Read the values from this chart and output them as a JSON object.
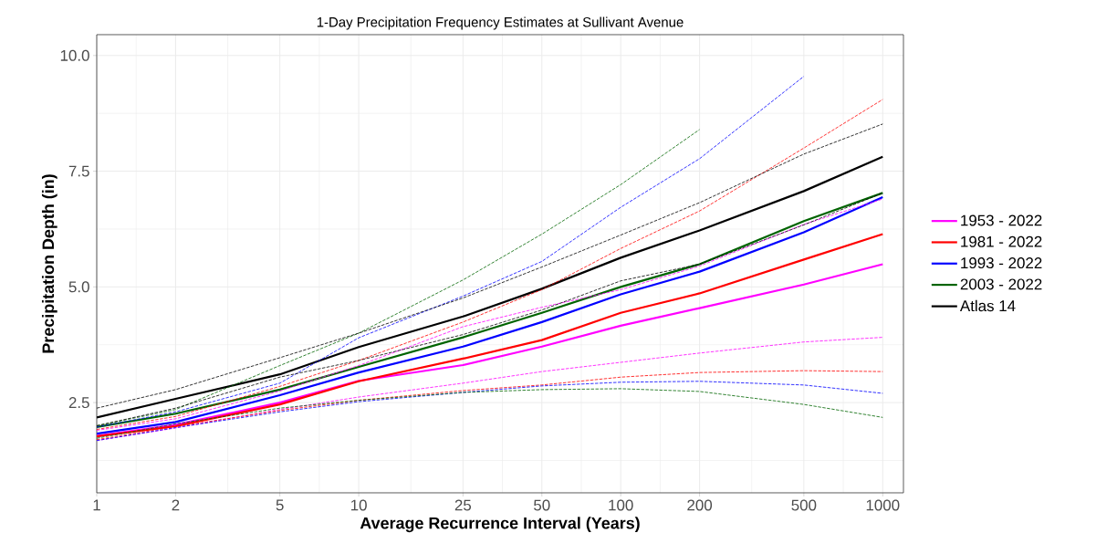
{
  "chart_data": {
    "type": "line",
    "title": "1-Day Precipitation Frequency Estimates at Sullivant Avenue",
    "xlabel": "Average Recurrence Interval (Years)",
    "ylabel": "Precipitation Depth (in)",
    "x": [
      1,
      2,
      5,
      10,
      25,
      50,
      100,
      200,
      500,
      1000
    ],
    "log": "x",
    "xlim": [
      1,
      1200
    ],
    "ylim": [
      0.55,
      10.45
    ],
    "xticks": [
      1,
      2,
      5,
      10,
      25,
      50,
      100,
      200,
      500,
      1000
    ],
    "yticks": [
      2.5,
      {
        "value": 5,
        "label": "5.0"
      },
      7.5,
      {
        "value": 10,
        "label": "10.0"
      }
    ],
    "grid": true,
    "legend": "right",
    "line_style": "solid",
    "series": [
      {
        "color": "#ff00ff",
        "line_style": "dashed",
        "values": [
          1.9,
          2.15,
          2.75,
          3.3,
          4.14,
          4.56,
          4.94,
          5.45,
          6.35,
          6.9
        ]
      },
      {
        "color": "#ff00ff",
        "line_style": "dashed",
        "values": [
          1.68,
          1.95,
          2.35,
          2.62,
          2.92,
          3.17,
          3.37,
          3.57,
          3.81,
          3.91
        ]
      },
      {
        "color": "#ff0000",
        "line_style": "dashed",
        "values": [
          1.92,
          2.2,
          2.85,
          3.41,
          4.24,
          4.94,
          5.83,
          6.64,
          8.0,
          9.05
        ]
      },
      {
        "color": "#ff0000",
        "line_style": "dashed",
        "values": [
          1.7,
          1.98,
          2.33,
          2.55,
          2.76,
          2.88,
          3.05,
          3.15,
          3.19,
          3.17
        ]
      },
      {
        "color": "#0000ff",
        "line_style": "dashed",
        "x": [
          1,
          2,
          5,
          10,
          25,
          50,
          100,
          200,
          500
        ],
        "values": [
          1.97,
          2.3,
          2.92,
          3.9,
          4.8,
          5.55,
          6.72,
          7.77,
          9.55
        ]
      },
      {
        "color": "#0000ff",
        "line_style": "dashed",
        "values": [
          1.68,
          1.96,
          2.3,
          2.52,
          2.72,
          2.86,
          2.94,
          2.96,
          2.88,
          2.7
        ]
      },
      {
        "color": "#006400",
        "line_style": "dashed",
        "x": [
          1,
          2,
          5,
          10,
          25,
          50,
          100,
          200
        ],
        "values": [
          2.0,
          2.35,
          3.3,
          4.0,
          5.15,
          6.14,
          7.21,
          8.4
        ]
      },
      {
        "color": "#006400",
        "line_style": "dashed",
        "values": [
          1.73,
          2.04,
          2.38,
          2.55,
          2.72,
          2.78,
          2.8,
          2.74,
          2.46,
          2.18
        ]
      },
      {
        "color": "#000000",
        "line_style": "dashed",
        "values": [
          2.38,
          2.78,
          3.47,
          4.0,
          4.76,
          5.43,
          6.12,
          6.82,
          7.87,
          8.52
        ]
      },
      {
        "color": "#000000",
        "line_style": "dashed",
        "values": [
          2.0,
          2.38,
          3.05,
          3.41,
          3.97,
          4.5,
          5.13,
          5.49,
          6.34,
          7.03
        ]
      },
      {
        "name": "1953 - 2022",
        "color": "#ff00ff",
        "values": [
          1.78,
          2.02,
          2.5,
          2.97,
          3.31,
          3.71,
          4.16,
          4.54,
          5.05,
          5.49
        ]
      },
      {
        "name": "1981 - 2022",
        "color": "#ff0000",
        "values": [
          1.77,
          1.99,
          2.46,
          2.96,
          3.45,
          3.85,
          4.44,
          4.86,
          5.59,
          6.14
        ]
      },
      {
        "name": "1993 - 2022",
        "color": "#0000ff",
        "values": [
          1.83,
          2.08,
          2.66,
          3.15,
          3.71,
          4.24,
          4.84,
          5.33,
          6.18,
          6.94
        ]
      },
      {
        "name": "2003 - 2022",
        "color": "#006400",
        "values": [
          1.97,
          2.26,
          2.78,
          3.27,
          3.91,
          4.44,
          5.0,
          5.49,
          6.42,
          7.03
        ]
      },
      {
        "name": "Atlas 14",
        "color": "#000000",
        "values": [
          2.18,
          2.58,
          3.11,
          3.7,
          4.36,
          4.96,
          5.63,
          6.22,
          7.07,
          7.81
        ]
      }
    ]
  }
}
